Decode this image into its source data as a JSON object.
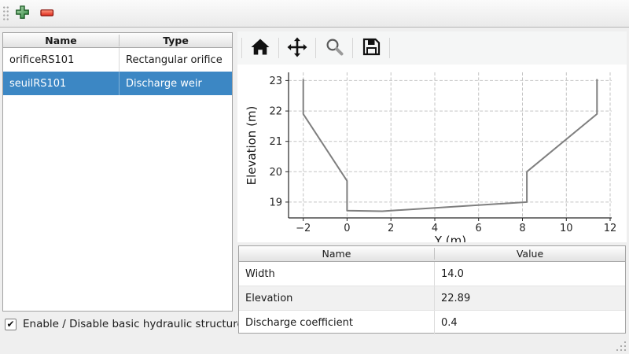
{
  "colors": {
    "selection_bg": "#3c87c4",
    "selection_text": "#ffffff",
    "alt_row_bg": "#f1f1f1",
    "line_color": "#7f7f7f",
    "add_green": "#3f9a4d",
    "remove_red": "#e5392b"
  },
  "top_toolbar": {
    "buttons": [
      {
        "icon": "plus-icon",
        "name": "add-structure-button"
      },
      {
        "icon": "minus-icon",
        "name": "remove-structure-button"
      }
    ]
  },
  "structures": {
    "columns": [
      "Name",
      "Type"
    ],
    "rows": [
      {
        "name": "orificeRS101",
        "type": "Rectangular orifice",
        "selected": false
      },
      {
        "name": "seuilRS101",
        "type": "Discharge weir",
        "selected": true
      }
    ]
  },
  "enable_checkbox": {
    "checked": true,
    "check_glyph": "✔",
    "label": "Enable / Disable basic hydraulic structure"
  },
  "plot_toolbar": {
    "icons": [
      "home-icon",
      "pan-icon",
      "zoom-icon",
      "save-icon"
    ]
  },
  "chart_data": {
    "type": "line",
    "title": "",
    "xlabel": "Y (m)",
    "ylabel": "Elevation (m)",
    "x": [
      -2,
      -2,
      0,
      0,
      1.6,
      8.2,
      8.2,
      11.4,
      11.4
    ],
    "y": [
      23.05,
      21.9,
      19.7,
      18.72,
      18.7,
      19.0,
      20.0,
      21.9,
      23.05
    ],
    "xticks": [
      -2,
      0,
      2,
      4,
      6,
      8,
      10,
      12
    ],
    "yticks": [
      19,
      20,
      21,
      22,
      23
    ],
    "xlim": [
      -2.67,
      12.07
    ],
    "ylim": [
      18.48,
      23.27
    ],
    "grid": true,
    "grid_style": "dashed",
    "legend": false,
    "line_color": "#7f7f7f"
  },
  "properties": {
    "columns": [
      "Name",
      "Value"
    ],
    "rows": [
      {
        "name": "Width",
        "value": "14.0"
      },
      {
        "name": "Elevation",
        "value": "22.89"
      },
      {
        "name": "Discharge coefficient",
        "value": "0.4"
      }
    ]
  }
}
